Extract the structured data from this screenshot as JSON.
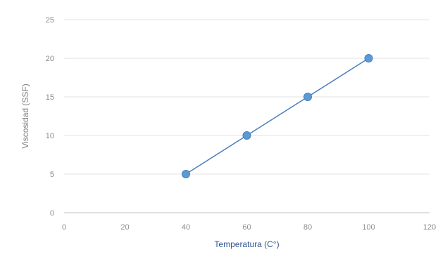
{
  "chart_data": {
    "type": "scatter",
    "xlabel": "Temperatura (C°)",
    "ylabel": "Viscosidad (SSF)",
    "xlim": [
      0,
      120
    ],
    "ylim": [
      0,
      25
    ],
    "x_ticks": [
      0,
      20,
      40,
      60,
      80,
      100,
      120
    ],
    "y_ticks": [
      0,
      5,
      10,
      15,
      20,
      25
    ],
    "grid": "horizontal",
    "legend": "none",
    "series": [
      {
        "x": [
          40,
          60,
          80,
          100
        ],
        "y": [
          5,
          10,
          15,
          20
        ],
        "connected": true,
        "color": "#5b9bd5",
        "line_color": "#4a7ebb"
      }
    ]
  }
}
